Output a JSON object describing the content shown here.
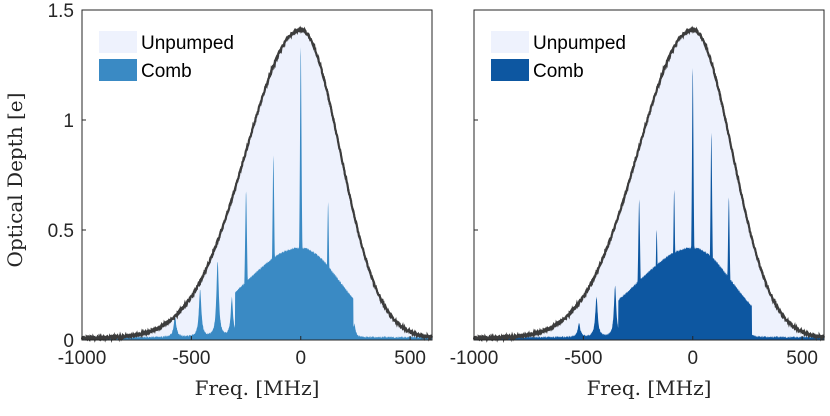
{
  "chart_data": [
    {
      "type": "area",
      "xlabel": "Freq. [MHz]",
      "ylabel": "Optical Depth [e]",
      "xlim": [
        -1000,
        600
      ],
      "ylim": [
        0,
        1.5
      ],
      "xticks": [
        "-1000",
        "-500",
        "0",
        "500"
      ],
      "yticks": [
        "0",
        "0.5",
        "1",
        "1.5"
      ],
      "grid": false,
      "legend": {
        "placement": "top-left",
        "entries": [
          "Unpumped",
          "Comb"
        ]
      },
      "colors": {
        "unpumped": "#eef2fd",
        "comb": "#3a8ac4",
        "envelope": "#3c3c3c"
      },
      "unpumped": {
        "center": 0,
        "peak": 1.41,
        "sigma_left": 250,
        "sigma_right": 180,
        "baseline": 0.008
      },
      "comb_block": {
        "start": -300,
        "end": 240
      },
      "comb_peaks": [
        {
          "x": -575,
          "height": 0.09
        },
        {
          "x": -460,
          "height": 0.21
        },
        {
          "x": -380,
          "height": 0.34
        },
        {
          "x": -315,
          "height": 0.17
        },
        {
          "x": -250,
          "height": 0.66
        },
        {
          "x": -125,
          "height": 0.82
        },
        {
          "x": 0,
          "height": 1.32
        },
        {
          "x": 125,
          "height": 0.61
        },
        {
          "x": 245,
          "height": 0.06
        }
      ]
    },
    {
      "type": "area",
      "xlabel": "Freq. [MHz]",
      "ylabel": "",
      "xlim": [
        -1000,
        600
      ],
      "ylim": [
        0,
        1.5
      ],
      "xticks": [
        "-1000",
        "-500",
        "0",
        "500"
      ],
      "yticks": [],
      "grid": false,
      "legend": {
        "placement": "top-left",
        "entries": [
          "Unpumped",
          "Comb"
        ]
      },
      "colors": {
        "unpumped": "#eef2fd",
        "comb": "#0d57a1",
        "envelope": "#3c3c3c"
      },
      "unpumped": {
        "center": 0,
        "peak": 1.41,
        "sigma_left": 250,
        "sigma_right": 180,
        "baseline": 0.008
      },
      "comb_block": {
        "start": -340,
        "end": 270
      },
      "comb_peaks": [
        {
          "x": -520,
          "height": 0.06
        },
        {
          "x": -440,
          "height": 0.18
        },
        {
          "x": -355,
          "height": 0.23
        },
        {
          "x": -245,
          "height": 0.62
        },
        {
          "x": -165,
          "height": 0.48
        },
        {
          "x": -85,
          "height": 0.66
        },
        {
          "x": 0,
          "height": 1.22
        },
        {
          "x": 85,
          "height": 0.92
        },
        {
          "x": 165,
          "height": 0.63
        },
        {
          "x": 250,
          "height": 0.12
        }
      ]
    }
  ]
}
